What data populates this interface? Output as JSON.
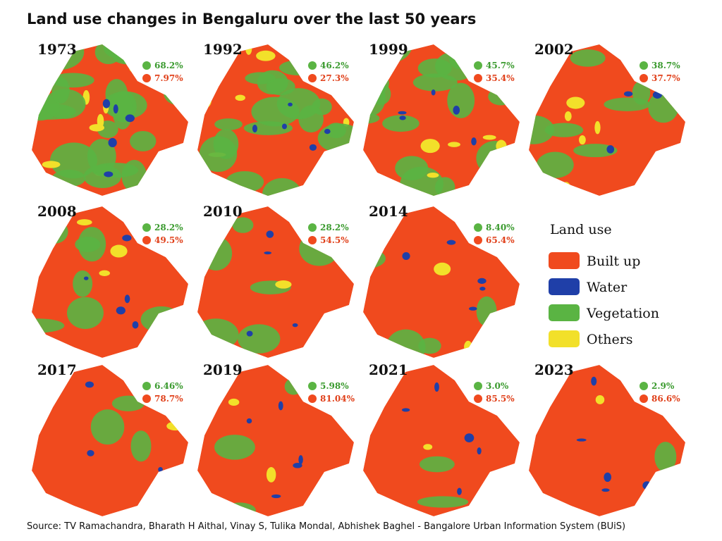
{
  "header": {
    "title": "Land use changes in Bengaluru over the last 50 years"
  },
  "panels": [
    {
      "year": "1973",
      "vegetation": "68.2%",
      "built_up": "7.97%"
    },
    {
      "year": "1992",
      "vegetation": "46.2%",
      "built_up": "27.3%"
    },
    {
      "year": "1999",
      "vegetation": "45.7%",
      "built_up": "35.4%"
    },
    {
      "year": "2002",
      "vegetation": "38.7%",
      "built_up": "37.7%"
    },
    {
      "year": "2008",
      "vegetation": "28.2%",
      "built_up": "49.5%"
    },
    {
      "year": "2010",
      "vegetation": "28.2%",
      "built_up": "54.5%"
    },
    {
      "year": "2014",
      "vegetation": "8.40%",
      "built_up": "65.4%"
    },
    {
      "year": "2017",
      "vegetation": "6.46%",
      "built_up": "78.7%"
    },
    {
      "year": "2019",
      "vegetation": "5.98%",
      "built_up": "81.04%"
    },
    {
      "year": "2021",
      "vegetation": "3.0%",
      "built_up": "85.5%"
    },
    {
      "year": "2023",
      "vegetation": "2.9%",
      "built_up": "86.6%"
    }
  ],
  "legend": {
    "title": "Land use",
    "items": [
      "Built up",
      "Water",
      "Vegetation",
      "Others"
    ]
  },
  "footer": {
    "source": "Source: TV Ramachandra, Bharath H Aithal, Vinay S, Tulika Mondal, Abhishek Baghel - Bangalore Urban Information System (BUiS)"
  }
}
